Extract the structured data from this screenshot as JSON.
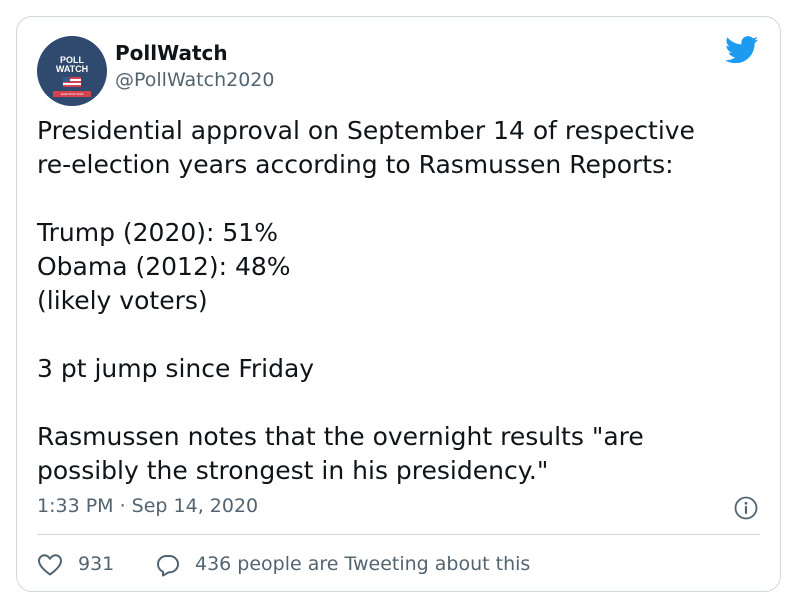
{
  "author": {
    "name": "PollWatch",
    "handle": "@PollWatch2020",
    "avatar_text": [
      "POLL",
      "WATCH"
    ],
    "avatar_ribbon": "ELECTION 2020",
    "avatar_color": "#2f4a6e"
  },
  "brand": {
    "icon": "twitter-bird-icon",
    "color": "#1d9bf0"
  },
  "tweet": {
    "line1": "Presidential approval on September 14 of respective",
    "line2": "re-election years according to Rasmussen Reports:",
    "line3": "Trump (2020): 51%",
    "line4": "Obama (2012): 48%",
    "line5": "(likely voters)",
    "line6": "3 pt jump since Friday",
    "line7": "Rasmussen notes that the overnight results \"are",
    "line8": "possibly the strongest in his presidency.\""
  },
  "timestamp": "1:33 PM · Sep 14, 2020",
  "actions": {
    "like_icon": "heart-icon",
    "like_count": "931",
    "reply_icon": "speech-bubble-icon",
    "conversation_text": "436 people are Tweeting about this"
  },
  "info_icon": "info-icon"
}
